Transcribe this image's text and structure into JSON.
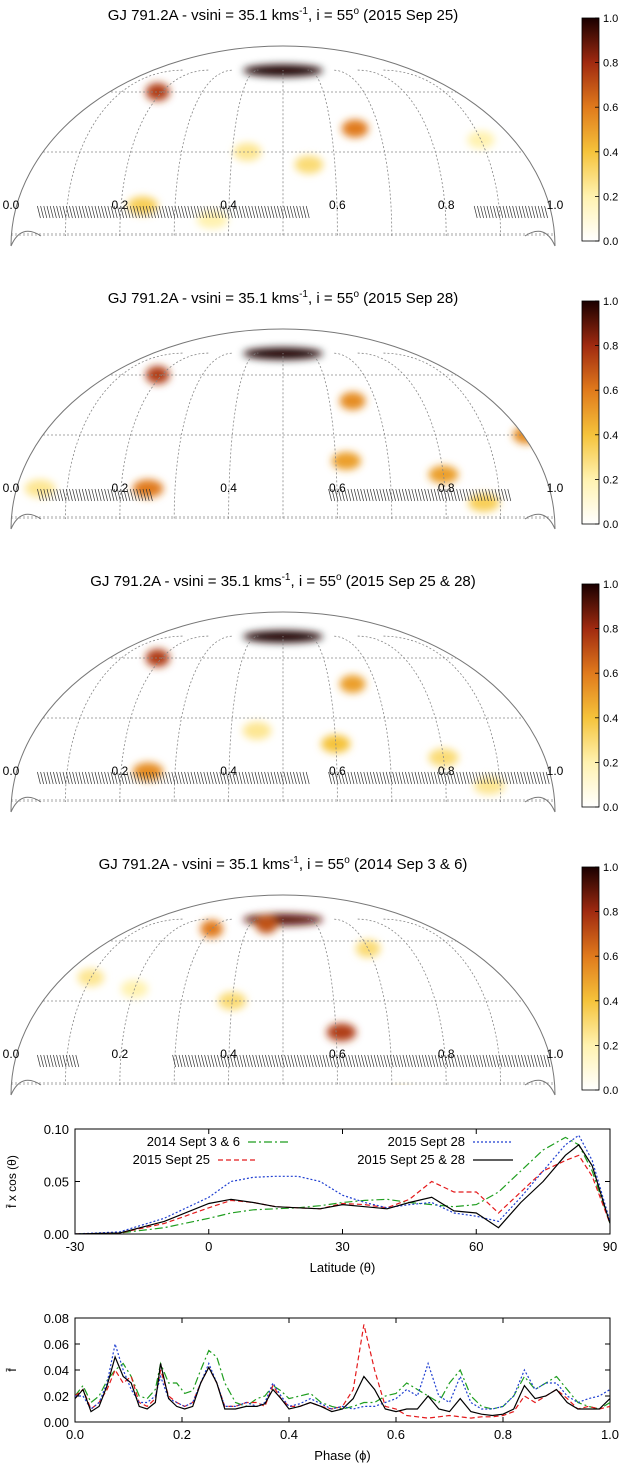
{
  "maps": [
    {
      "title": "GJ 791.2A - vsini = 35.1 kms",
      "title_sup1": "-1",
      "title_mid": ", i = 55",
      "title_sup2": "o",
      "title_tail": " (2015 Sep 25)",
      "phase_labels": [
        "0.0",
        "0.2",
        "0.4",
        "0.6",
        "0.8",
        "1.0"
      ],
      "colorbar_ticks": [
        "1.0",
        "0.8",
        "0.6",
        "0.4",
        "0.2",
        "0.0"
      ],
      "obs_phases": [
        [
          0.02,
          0.54
        ],
        [
          0.86,
          1.0
        ]
      ],
      "spots": [
        {
          "lon": 0.5,
          "lat": 85,
          "intensity": 1.0
        },
        {
          "lon": 0.19,
          "lat": 60,
          "intensity": 0.75
        },
        {
          "lon": 0.65,
          "lat": 40,
          "intensity": 0.6
        },
        {
          "lon": 0.24,
          "lat": 10,
          "intensity": 0.35
        },
        {
          "lon": 0.55,
          "lat": 25,
          "intensity": 0.3
        },
        {
          "lon": 0.43,
          "lat": 30,
          "intensity": 0.25
        },
        {
          "lon": 0.37,
          "lat": 5,
          "intensity": 0.2
        },
        {
          "lon": 0.9,
          "lat": 35,
          "intensity": 0.2
        }
      ]
    },
    {
      "title": "GJ 791.2A - vsini = 35.1 kms",
      "title_sup1": "-1",
      "title_mid": ", i = 55",
      "title_sup2": "o",
      "title_tail": " (2015 Sep 28)",
      "phase_labels": [
        "0.0",
        "0.2",
        "0.4",
        "0.6",
        "0.8",
        "1.0"
      ],
      "colorbar_ticks": [
        "1.0",
        "0.8",
        "0.6",
        "0.4",
        "0.2",
        "0.0"
      ],
      "obs_phases": [
        [
          0.02,
          0.24
        ],
        [
          0.58,
          0.93
        ]
      ],
      "spots": [
        {
          "lon": 0.5,
          "lat": 85,
          "intensity": 1.0
        },
        {
          "lon": 0.19,
          "lat": 60,
          "intensity": 0.75
        },
        {
          "lon": 0.65,
          "lat": 45,
          "intensity": 0.55
        },
        {
          "lon": 0.25,
          "lat": 10,
          "intensity": 0.6
        },
        {
          "lon": 0.62,
          "lat": 20,
          "intensity": 0.5
        },
        {
          "lon": 0.8,
          "lat": 15,
          "intensity": 0.5
        },
        {
          "lon": 0.98,
          "lat": 30,
          "intensity": 0.55
        },
        {
          "lon": 0.05,
          "lat": 10,
          "intensity": 0.25
        },
        {
          "lon": 0.87,
          "lat": 5,
          "intensity": 0.35
        }
      ]
    },
    {
      "title": "GJ 791.2A - vsini = 35.1 kms",
      "title_sup1": "-1",
      "title_mid": ", i = 55",
      "title_sup2": "o",
      "title_tail": " (2015 Sep 25 & 28)",
      "phase_labels": [
        "0.0",
        "0.2",
        "0.4",
        "0.6",
        "0.8",
        "1.0"
      ],
      "colorbar_ticks": [
        "1.0",
        "0.8",
        "0.6",
        "0.4",
        "0.2",
        "0.0"
      ],
      "obs_phases": [
        [
          0.02,
          0.54
        ],
        [
          0.58,
          1.0
        ]
      ],
      "spots": [
        {
          "lon": 0.5,
          "lat": 85,
          "intensity": 1.0
        },
        {
          "lon": 0.19,
          "lat": 60,
          "intensity": 0.75
        },
        {
          "lon": 0.65,
          "lat": 45,
          "intensity": 0.5
        },
        {
          "lon": 0.25,
          "lat": 10,
          "intensity": 0.55
        },
        {
          "lon": 0.6,
          "lat": 20,
          "intensity": 0.4
        },
        {
          "lon": 0.8,
          "lat": 15,
          "intensity": 0.3
        },
        {
          "lon": 0.45,
          "lat": 25,
          "intensity": 0.25
        },
        {
          "lon": 0.88,
          "lat": 5,
          "intensity": 0.25
        }
      ]
    },
    {
      "title": "GJ 791.2A - vsini = 35.1 kms",
      "title_sup1": "-1",
      "title_mid": ", i = 55",
      "title_sup2": "o",
      "title_tail": " (2014 Sep 3 & 6)",
      "phase_labels": [
        "0.0",
        "0.2",
        "0.4",
        "0.6",
        "0.8",
        "1.0"
      ],
      "colorbar_ticks": [
        "1.0",
        "0.8",
        "0.6",
        "0.4",
        "0.2",
        "0.0"
      ],
      "obs_phases": [
        [
          0.02,
          0.1
        ],
        [
          0.28,
          1.0
        ]
      ],
      "spots": [
        {
          "lon": 0.5,
          "lat": 85,
          "intensity": 0.9
        },
        {
          "lon": 0.45,
          "lat": 75,
          "intensity": 0.7
        },
        {
          "lon": 0.3,
          "lat": 70,
          "intensity": 0.6
        },
        {
          "lon": 0.61,
          "lat": 18,
          "intensity": 0.75
        },
        {
          "lon": 0.4,
          "lat": 30,
          "intensity": 0.3
        },
        {
          "lon": 0.2,
          "lat": 35,
          "intensity": 0.2
        },
        {
          "lon": 0.7,
          "lat": 55,
          "intensity": 0.3
        },
        {
          "lon": 0.72,
          "lat": -5,
          "intensity": 0.3
        },
        {
          "lon": 0.1,
          "lat": 40,
          "intensity": 0.25
        }
      ]
    }
  ],
  "chart_data": [
    {
      "type": "line",
      "ylabel": "f̄ x cos (θ)",
      "xlabel": "Latitude (θ)",
      "xlim": [
        -30,
        90
      ],
      "ylim": [
        0.0,
        0.1
      ],
      "xticks": [
        "-30",
        "0",
        "30",
        "60",
        "90"
      ],
      "yticks": [
        "0.00",
        "0.05",
        "0.10"
      ],
      "x": [
        -30,
        -20,
        -10,
        0,
        5,
        10,
        15,
        20,
        25,
        30,
        35,
        40,
        45,
        50,
        55,
        60,
        65,
        70,
        75,
        80,
        83,
        86,
        90
      ],
      "series": [
        {
          "name": "2014 Sept 3 & 6",
          "color": "#1f9e1f",
          "dash": "8,3,2,3",
          "values": [
            0.0,
            0.001,
            0.006,
            0.015,
            0.02,
            0.023,
            0.024,
            0.025,
            0.027,
            0.03,
            0.032,
            0.033,
            0.03,
            0.028,
            0.026,
            0.028,
            0.04,
            0.06,
            0.08,
            0.092,
            0.085,
            0.06,
            0.01
          ]
        },
        {
          "name": "2015 Sept 25",
          "color": "#e41a1c",
          "dash": "5,3",
          "values": [
            0.0,
            0.001,
            0.01,
            0.025,
            0.032,
            0.03,
            0.026,
            0.025,
            0.024,
            0.029,
            0.028,
            0.025,
            0.033,
            0.05,
            0.04,
            0.04,
            0.02,
            0.04,
            0.06,
            0.07,
            0.075,
            0.055,
            0.01
          ]
        },
        {
          "name": "2015 Sept 28",
          "color": "#1f3fd1",
          "dash": "2,2",
          "values": [
            0.0,
            0.002,
            0.015,
            0.035,
            0.05,
            0.054,
            0.055,
            0.055,
            0.05,
            0.037,
            0.03,
            0.025,
            0.028,
            0.03,
            0.02,
            0.017,
            0.012,
            0.035,
            0.06,
            0.085,
            0.094,
            0.07,
            0.012
          ]
        },
        {
          "name": "2015 Sept 25 & 28",
          "color": "#000000",
          "dash": "",
          "values": [
            0.0,
            0.001,
            0.012,
            0.029,
            0.033,
            0.03,
            0.026,
            0.025,
            0.024,
            0.028,
            0.026,
            0.024,
            0.03,
            0.035,
            0.022,
            0.02,
            0.006,
            0.03,
            0.05,
            0.075,
            0.085,
            0.065,
            0.01
          ]
        }
      ]
    },
    {
      "type": "line",
      "ylabel": "f̄",
      "xlabel": "Phase (ϕ)",
      "xlim": [
        0.0,
        1.0
      ],
      "ylim": [
        0.0,
        0.08
      ],
      "xticks": [
        "0.0",
        "0.2",
        "0.4",
        "0.6",
        "0.8",
        "1.0"
      ],
      "yticks": [
        "0.00",
        "0.02",
        "0.04",
        "0.06",
        "0.08"
      ],
      "x": [
        0.0,
        0.015,
        0.03,
        0.045,
        0.06,
        0.075,
        0.09,
        0.105,
        0.12,
        0.135,
        0.15,
        0.16,
        0.175,
        0.19,
        0.205,
        0.22,
        0.235,
        0.25,
        0.265,
        0.28,
        0.3,
        0.32,
        0.34,
        0.355,
        0.37,
        0.385,
        0.4,
        0.42,
        0.44,
        0.46,
        0.48,
        0.5,
        0.52,
        0.54,
        0.56,
        0.58,
        0.6,
        0.62,
        0.64,
        0.66,
        0.68,
        0.7,
        0.72,
        0.74,
        0.76,
        0.78,
        0.8,
        0.82,
        0.84,
        0.86,
        0.88,
        0.9,
        0.92,
        0.94,
        0.96,
        0.98,
        1.0
      ],
      "series": [
        {
          "name": "2014 Sept 3 & 6",
          "color": "#1f9e1f",
          "dash": "8,3,2,3",
          "values": [
            0.02,
            0.028,
            0.015,
            0.02,
            0.032,
            0.04,
            0.045,
            0.035,
            0.02,
            0.018,
            0.025,
            0.045,
            0.03,
            0.03,
            0.022,
            0.024,
            0.04,
            0.055,
            0.05,
            0.03,
            0.015,
            0.012,
            0.018,
            0.02,
            0.028,
            0.024,
            0.018,
            0.02,
            0.022,
            0.015,
            0.012,
            0.01,
            0.012,
            0.015,
            0.015,
            0.02,
            0.022,
            0.03,
            0.025,
            0.02,
            0.015,
            0.03,
            0.04,
            0.02,
            0.012,
            0.01,
            0.012,
            0.02,
            0.035,
            0.025,
            0.03,
            0.035,
            0.025,
            0.015,
            0.012,
            0.01,
            0.015
          ]
        },
        {
          "name": "2015 Sept 25",
          "color": "#e41a1c",
          "dash": "5,3",
          "values": [
            0.02,
            0.025,
            0.01,
            0.015,
            0.025,
            0.04,
            0.03,
            0.035,
            0.015,
            0.012,
            0.018,
            0.04,
            0.02,
            0.015,
            0.012,
            0.015,
            0.03,
            0.042,
            0.03,
            0.012,
            0.012,
            0.015,
            0.015,
            0.012,
            0.028,
            0.018,
            0.012,
            0.012,
            0.015,
            0.012,
            0.01,
            0.012,
            0.025,
            0.075,
            0.04,
            0.012,
            0.01,
            0.005,
            0.004,
            0.003,
            0.004,
            0.005,
            0.004,
            0.003,
            0.004,
            0.004,
            0.005,
            0.008,
            0.02,
            0.015,
            0.02,
            0.025,
            0.018,
            0.01,
            0.012,
            0.01,
            0.012
          ]
        },
        {
          "name": "2015 Sept 28",
          "color": "#1f3fd1",
          "dash": "2,2",
          "values": [
            0.02,
            0.02,
            0.01,
            0.015,
            0.03,
            0.06,
            0.04,
            0.025,
            0.015,
            0.015,
            0.02,
            0.035,
            0.018,
            0.015,
            0.012,
            0.015,
            0.03,
            0.045,
            0.03,
            0.012,
            0.012,
            0.015,
            0.012,
            0.015,
            0.03,
            0.02,
            0.012,
            0.014,
            0.018,
            0.014,
            0.01,
            0.012,
            0.01,
            0.012,
            0.012,
            0.015,
            0.018,
            0.025,
            0.02,
            0.045,
            0.02,
            0.015,
            0.035,
            0.015,
            0.01,
            0.01,
            0.012,
            0.02,
            0.04,
            0.025,
            0.03,
            0.03,
            0.02,
            0.015,
            0.018,
            0.02,
            0.025
          ]
        },
        {
          "name": "2015 Sept 25 & 28",
          "color": "#000000",
          "dash": "",
          "values": [
            0.018,
            0.025,
            0.008,
            0.012,
            0.028,
            0.05,
            0.035,
            0.03,
            0.012,
            0.01,
            0.015,
            0.045,
            0.018,
            0.012,
            0.01,
            0.012,
            0.03,
            0.042,
            0.03,
            0.01,
            0.01,
            0.012,
            0.012,
            0.014,
            0.025,
            0.018,
            0.01,
            0.012,
            0.015,
            0.012,
            0.008,
            0.01,
            0.018,
            0.035,
            0.025,
            0.01,
            0.008,
            0.01,
            0.01,
            0.02,
            0.01,
            0.008,
            0.018,
            0.008,
            0.006,
            0.005,
            0.006,
            0.01,
            0.028,
            0.018,
            0.02,
            0.025,
            0.015,
            0.01,
            0.01,
            0.01,
            0.018
          ]
        }
      ]
    }
  ]
}
